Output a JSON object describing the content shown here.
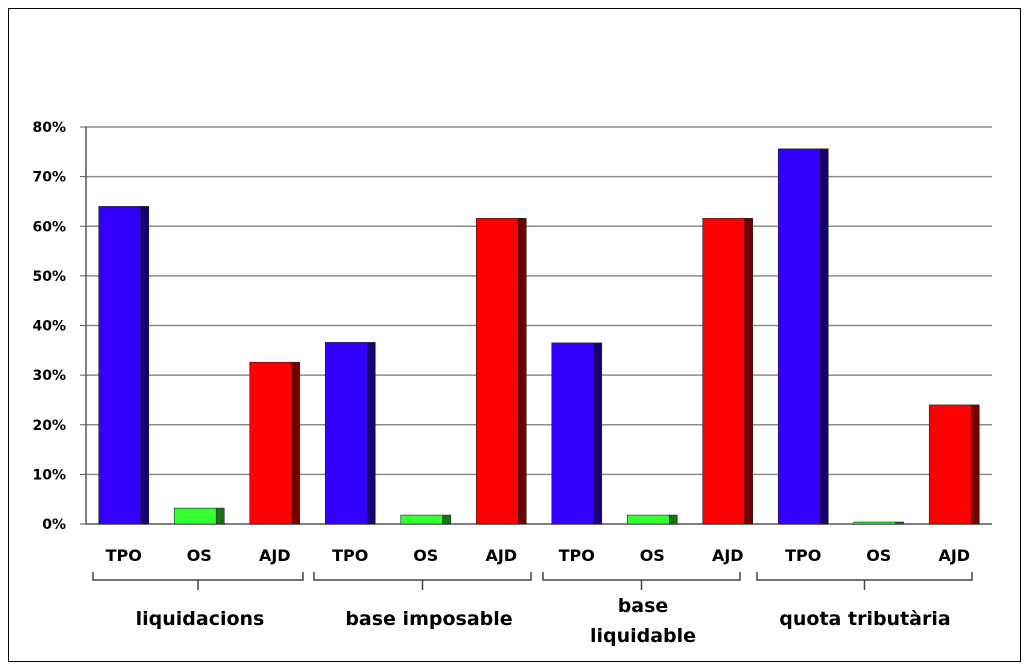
{
  "chart_data": {
    "type": "bar",
    "title": "",
    "xlabel": "",
    "ylabel": "",
    "ylim": [
      0,
      80
    ],
    "y_ticks": [
      "0%",
      "10%",
      "20%",
      "30%",
      "40%",
      "50%",
      "60%",
      "70%",
      "80%"
    ],
    "y_tick_values": [
      0,
      10,
      20,
      30,
      40,
      50,
      60,
      70,
      80
    ],
    "grid": true,
    "legend": "none",
    "colors": {
      "TPO": "#3300ff",
      "OS": "#33ff33",
      "AJD": "#ff0000"
    },
    "groups": [
      {
        "label": "liquidacions",
        "label_lines": [
          "liquidacions"
        ],
        "bars": [
          {
            "category": "TPO",
            "value": 64
          },
          {
            "category": "OS",
            "value": 3.2
          },
          {
            "category": "AJD",
            "value": 32.6
          }
        ]
      },
      {
        "label": "base imposable",
        "label_lines": [
          "base imposable"
        ],
        "bars": [
          {
            "category": "TPO",
            "value": 36.6
          },
          {
            "category": "OS",
            "value": 1.8
          },
          {
            "category": "AJD",
            "value": 61.6
          }
        ]
      },
      {
        "label": "base liquidable",
        "label_lines": [
          "base",
          "liquidable"
        ],
        "bars": [
          {
            "category": "TPO",
            "value": 36.5
          },
          {
            "category": "OS",
            "value": 1.8
          },
          {
            "category": "AJD",
            "value": 61.6
          }
        ]
      },
      {
        "label": "quota tributària",
        "label_lines": [
          "quota tributària"
        ],
        "bars": [
          {
            "category": "TPO",
            "value": 75.6
          },
          {
            "category": "OS",
            "value": 0.4
          },
          {
            "category": "AJD",
            "value": 24
          }
        ]
      }
    ]
  }
}
